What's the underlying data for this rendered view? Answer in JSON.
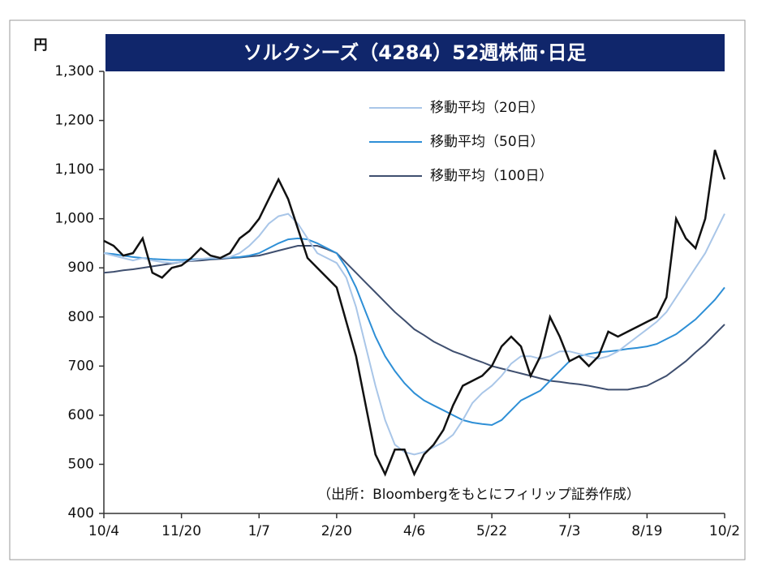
{
  "chart_data": {
    "type": "line",
    "title": "ソルクシーズ（4284）52週株価･日足",
    "y_unit": "円",
    "note": "（出所：Bloombergをもとにフィリップ証券作成）",
    "categories": [
      "10/4",
      null,
      null,
      null,
      null,
      null,
      null,
      null,
      "11/20",
      null,
      null,
      null,
      null,
      null,
      null,
      null,
      "1/7",
      null,
      null,
      null,
      null,
      null,
      null,
      null,
      "2/20",
      null,
      null,
      null,
      null,
      null,
      null,
      null,
      "4/6",
      null,
      null,
      null,
      null,
      null,
      null,
      null,
      "5/22",
      null,
      null,
      null,
      null,
      null,
      null,
      null,
      "7/3",
      null,
      null,
      null,
      null,
      null,
      null,
      null,
      "8/19",
      null,
      null,
      null,
      null,
      null,
      null,
      null,
      "10/2"
    ],
    "series": [
      {
        "color": "#111111",
        "values": [
          955,
          945,
          925,
          930,
          960,
          890,
          880,
          900,
          905,
          920,
          940,
          925,
          920,
          930,
          960,
          975,
          1000,
          1040,
          1080,
          1040,
          980,
          920,
          900,
          880,
          860,
          790,
          720,
          620,
          520,
          480,
          530,
          530,
          480,
          520,
          540,
          570,
          620,
          660,
          670,
          680,
          700,
          740,
          760,
          740,
          680,
          720,
          800,
          760,
          710,
          720,
          700,
          720,
          770,
          760,
          770,
          780,
          790,
          800,
          840,
          1000,
          960,
          940,
          1000,
          1140,
          1080
        ]
      },
      {
        "name": "移動平均（20日）",
        "color": "#a9c6e8",
        "values": [
          930,
          925,
          920,
          915,
          920,
          915,
          912,
          910,
          912,
          915,
          918,
          920,
          920,
          922,
          930,
          945,
          965,
          990,
          1005,
          1010,
          990,
          960,
          930,
          920,
          910,
          880,
          820,
          740,
          660,
          590,
          540,
          525,
          520,
          525,
          535,
          545,
          560,
          590,
          625,
          645,
          660,
          680,
          705,
          720,
          720,
          715,
          720,
          730,
          730,
          725,
          720,
          715,
          720,
          730,
          745,
          760,
          775,
          790,
          810,
          840,
          870,
          900,
          930,
          970,
          1010
        ]
      },
      {
        "name": "移動平均（50日）",
        "color": "#2e8fd6",
        "values": [
          930,
          928,
          925,
          922,
          920,
          918,
          917,
          916,
          916,
          917,
          918,
          919,
          920,
          921,
          922,
          925,
          930,
          940,
          950,
          958,
          960,
          958,
          950,
          940,
          930,
          900,
          860,
          810,
          760,
          720,
          690,
          665,
          645,
          630,
          620,
          610,
          600,
          590,
          585,
          582,
          580,
          590,
          610,
          630,
          640,
          650,
          670,
          690,
          710,
          720,
          725,
          728,
          730,
          732,
          735,
          737,
          740,
          745,
          755,
          765,
          780,
          795,
          815,
          835,
          860
        ]
      },
      {
        "name": "移動平均（100日）",
        "color": "#3f4f6f",
        "values": [
          890,
          892,
          895,
          897,
          900,
          903,
          906,
          909,
          912,
          914,
          915,
          917,
          918,
          920,
          921,
          923,
          925,
          930,
          935,
          940,
          945,
          945,
          945,
          938,
          930,
          910,
          890,
          870,
          850,
          830,
          810,
          793,
          775,
          763,
          750,
          740,
          730,
          723,
          715,
          708,
          700,
          695,
          690,
          685,
          680,
          675,
          670,
          668,
          665,
          663,
          660,
          656,
          652,
          652,
          652,
          656,
          660,
          670,
          680,
          695,
          710,
          728,
          745,
          765,
          785
        ]
      }
    ],
    "ylim": [
      400,
      1300
    ],
    "yticks": [
      400,
      500,
      600,
      700,
      800,
      900,
      {
        "value": 1000,
        "label": "1,000"
      },
      {
        "value": 1100,
        "label": "1,100"
      },
      {
        "value": 1200,
        "label": "1,200"
      },
      {
        "value": 1300,
        "label": "1,300"
      }
    ],
    "grid": false
  }
}
